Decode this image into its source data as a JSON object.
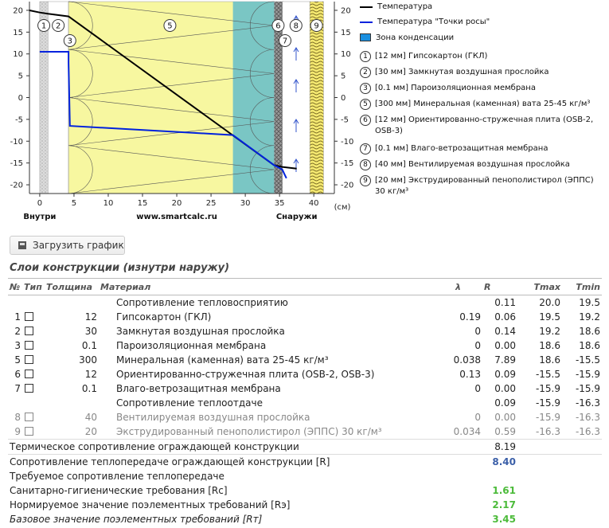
{
  "chart": {
    "x_ticks": [
      "0",
      "5",
      "10",
      "15",
      "20",
      "25",
      "30",
      "35",
      "40"
    ],
    "y_ticks": [
      "20",
      "15",
      "10",
      "5",
      "0",
      "-5",
      "-10",
      "-15",
      "-20"
    ],
    "unit_label": "(см)",
    "inside_label": "Внутри",
    "outside_label": "Снаружи",
    "site_label": "www.smartcalc.ru",
    "layer_numbers": [
      "1",
      "2",
      "3",
      "5",
      "6",
      "7",
      "8",
      "9"
    ]
  },
  "chart_data": {
    "type": "line",
    "x_unit": "см",
    "xlim": [
      -1.5,
      43
    ],
    "ylim": [
      -22,
      22
    ],
    "series": [
      {
        "name": "Температура",
        "color": "#000000",
        "x": [
          -1.5,
          0,
          1.2,
          4.2,
          4.21,
          34.21,
          35.41,
          35.42,
          37.5
        ],
        "y": [
          20.0,
          19.5,
          19.2,
          18.6,
          18.6,
          -15.5,
          -15.9,
          -15.9,
          -16.3
        ]
      },
      {
        "name": "Температура \"Точки росы\"",
        "color": "#0022dd",
        "x": [
          0,
          4.2,
          4.21,
          4.4,
          28.2,
          34.2,
          35.4,
          35.7,
          36.0
        ],
        "y": [
          10.5,
          10.5,
          8.0,
          -6.5,
          -8.6,
          -15.5,
          -16.5,
          -17.5,
          -18.5
        ]
      }
    ],
    "layers": [
      {
        "num": "1",
        "x0": 0,
        "x1": 1.2,
        "material": "Гипсокартон (ГКЛ)"
      },
      {
        "num": "2",
        "x0": 1.2,
        "x1": 4.2,
        "material": "Замкнутая воздушная прослойка"
      },
      {
        "num": "3",
        "x0": 4.2,
        "x1": 4.21,
        "material": "Пароизоляционная мембрана"
      },
      {
        "num": "5",
        "x0": 4.21,
        "x1": 34.21,
        "material": "Минеральная (каменная) вата 25-45 кг/м³"
      },
      {
        "num": "6",
        "x0": 34.21,
        "x1": 35.41,
        "material": "Ориентированно-стружечная плита (OSB-2, OSB-3)"
      },
      {
        "num": "7",
        "x0": 35.41,
        "x1": 35.42,
        "material": "Влаго-ветрозащитная мембрана"
      },
      {
        "num": "8",
        "x0": 35.42,
        "x1": 39.42,
        "material": "Вентилируемая воздушная прослойка"
      },
      {
        "num": "9",
        "x0": 39.42,
        "x1": 41.42,
        "material": "Экструдированный пенополистирол (ЭППС) 30 кг/м³"
      }
    ],
    "condensation_zone": [
      28.2,
      34.21
    ]
  },
  "legend": {
    "temperature": "Температура",
    "dew_point": "Температура \"Точки росы\"",
    "condensation": "Зона конденсации",
    "colors": {
      "temperature": "#000000",
      "dew_point": "#0022dd",
      "condensation": "#1a8fe0"
    },
    "layers": [
      {
        "num": "1",
        "text": "[12 мм] Гипсокартон (ГКЛ)"
      },
      {
        "num": "2",
        "text": "[30 мм] Замкнутая воздушная прослойка"
      },
      {
        "num": "3",
        "text": "[0.1 мм] Пароизоляционная мембрана"
      },
      {
        "num": "5",
        "text": "[300 мм] Минеральная (каменная) вата 25-45 кг/м³"
      },
      {
        "num": "6",
        "text": "[12 мм] Ориентированно-стружечная плита (OSB-2, OSB-3)"
      },
      {
        "num": "7",
        "text": "[0.1 мм] Влаго-ветрозащитная мембрана"
      },
      {
        "num": "8",
        "text": "[40 мм] Вентилируемая воздушная прослойка"
      },
      {
        "num": "9",
        "text": "[20 мм] Экструдированный пенополистирол (ЭППС) 30 кг/м³"
      }
    ]
  },
  "load_button": "Загрузить график",
  "section_title": "Слои конструкции (изнутри наружу)",
  "table": {
    "headers": {
      "no": "№",
      "type": "Тип",
      "thickness": "Толщина",
      "material": "Материал",
      "lambda": "λ",
      "r": "R",
      "tmax": "Tmax",
      "tmin": "Tmin"
    },
    "rows": [
      {
        "no": "",
        "box": false,
        "thickness": "",
        "material": "Сопротивление тепловосприятию",
        "lambda": "",
        "r": "0.11",
        "tmax": "20.0",
        "tmin": "19.5",
        "gray": false
      },
      {
        "no": "1",
        "box": true,
        "thickness": "12",
        "material": "Гипсокартон (ГКЛ)",
        "lambda": "0.19",
        "r": "0.06",
        "tmax": "19.5",
        "tmin": "19.2",
        "gray": false
      },
      {
        "no": "2",
        "box": true,
        "thickness": "30",
        "material": "Замкнутая воздушная прослойка",
        "lambda": "0",
        "r": "0.14",
        "tmax": "19.2",
        "tmin": "18.6",
        "gray": false
      },
      {
        "no": "3",
        "box": true,
        "thickness": "0.1",
        "material": "Пароизоляционная мембрана",
        "lambda": "0",
        "r": "0.00",
        "tmax": "18.6",
        "tmin": "18.6",
        "gray": false
      },
      {
        "no": "5",
        "box": true,
        "thickness": "300",
        "material": "Минеральная (каменная) вата 25-45 кг/м³",
        "lambda": "0.038",
        "r": "7.89",
        "tmax": "18.6",
        "tmin": "-15.5",
        "gray": false
      },
      {
        "no": "6",
        "box": true,
        "thickness": "12",
        "material": "Ориентированно-стружечная плита (OSB-2, OSB-3)",
        "lambda": "0.13",
        "r": "0.09",
        "tmax": "-15.5",
        "tmin": "-15.9",
        "gray": false
      },
      {
        "no": "7",
        "box": true,
        "thickness": "0.1",
        "material": "Влаго-ветрозащитная мембрана",
        "lambda": "0",
        "r": "0.00",
        "tmax": "-15.9",
        "tmin": "-15.9",
        "gray": false
      },
      {
        "no": "",
        "box": false,
        "thickness": "",
        "material": "Сопротивление теплоотдаче",
        "lambda": "",
        "r": "0.09",
        "tmax": "-15.9",
        "tmin": "-16.3",
        "gray": false
      },
      {
        "no": "8",
        "box": true,
        "thickness": "40",
        "material": "Вентилируемая воздушная прослойка",
        "lambda": "0",
        "r": "0.00",
        "tmax": "-15.9",
        "tmin": "-16.3",
        "gray": true
      },
      {
        "no": "9",
        "box": true,
        "thickness": "20",
        "material": "Экструдированный пенополистирол (ЭППС) 30 кг/м³",
        "lambda": "0.034",
        "r": "0.59",
        "tmax": "-16.3",
        "tmin": "-16.3",
        "gray": true
      }
    ],
    "summary": [
      {
        "label": "Термическое сопротивление ограждающей конструкции",
        "value": "8.19",
        "style": "plain"
      },
      {
        "label": "Сопротивление теплопередаче ограждающей конструкции [R]",
        "value": "8.40",
        "style": "blue"
      },
      {
        "label": "Требуемое сопротивление теплопередаче",
        "value": "",
        "style": "plain"
      },
      {
        "label": "Санитарно-гигиенические требования [Rc]",
        "value": "1.61",
        "style": "green"
      },
      {
        "label": "Нормируемое значение поэлементных требований [Rэ]",
        "value": "2.17",
        "style": "green"
      },
      {
        "label": "Базовое значение поэлементных требований [Rт]",
        "value": "3.45",
        "style": "green-italic"
      }
    ]
  }
}
